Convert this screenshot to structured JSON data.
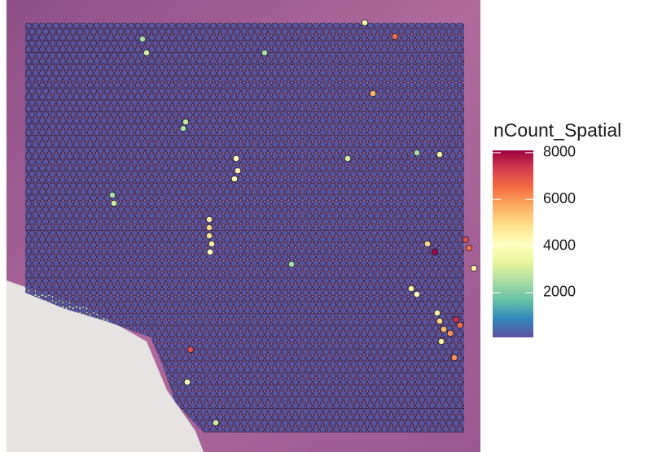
{
  "chart_data": {
    "type": "spatial",
    "legend_title": "nCount_Spatial",
    "colors": [
      "#5E4FA2",
      "#3288BD",
      "#66C2A5",
      "#ABDDA4",
      "#E6F598",
      "#FFFFBF",
      "#FEE08B",
      "#FDAE61",
      "#F46D43",
      "#D53E4F",
      "#9E0142"
    ],
    "colorlim": [
      80,
      8100
    ],
    "colorticks": [
      2000,
      4000,
      6000,
      8000
    ],
    "xlim": [
      0,
      560
    ],
    "ylim": [
      0,
      540
    ],
    "x": [
      155,
      160,
      208,
      205,
      270,
      272,
      268,
      118,
      120,
      237,
      237,
      237,
      240,
      238,
      514,
      505,
      552,
      556,
      562,
      485,
      492,
      517,
      520,
      525,
      540,
      545,
      533,
      522,
      538,
      465,
      438,
      305,
      407,
      520,
      492,
      338,
      210,
      214,
      245,
      428
    ],
    "y": [
      48,
      65,
      150,
      158,
      195,
      210,
      220,
      240,
      250,
      270,
      280,
      290,
      300,
      310,
      310,
      300,
      295,
      305,
      330,
      355,
      362,
      385,
      395,
      405,
      393,
      400,
      410,
      420,
      440,
      45,
      115,
      65,
      195,
      190,
      188,
      325,
      470,
      430,
      520,
      28
    ],
    "values": [
      2500,
      3000,
      2800,
      2500,
      4200,
      4500,
      3800,
      2500,
      3000,
      4500,
      5000,
      4800,
      4500,
      4000,
      8000,
      5000,
      7000,
      6500,
      4500,
      4500,
      4000,
      4500,
      5000,
      5500,
      7500,
      6500,
      6000,
      4500,
      6000,
      6500,
      5500,
      2500,
      3000,
      3500,
      2500,
      2500,
      4000,
      7000,
      3000,
      3500
    ]
  }
}
